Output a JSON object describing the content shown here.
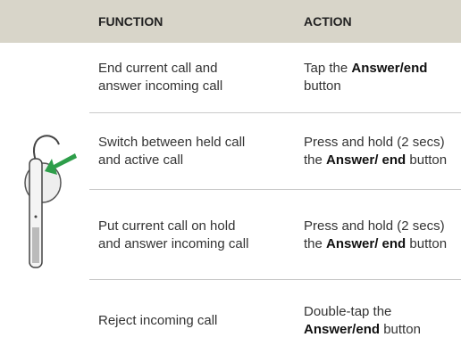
{
  "table": {
    "header": [
      "FUNCTION",
      "ACTION"
    ],
    "rows": [
      {
        "function": "End current call and answer incoming call",
        "action": {
          "before": "Tap the",
          "bold": "Answer/end",
          "after": "button"
        }
      },
      {
        "function": "Switch between held call and active call",
        "action": {
          "before": "Press and hold (2 secs) the",
          "bold": "Answer/ end",
          "after": "button"
        }
      },
      {
        "function": "Put current call on hold and answer incoming call",
        "action": {
          "before": "Press and hold (2 secs) the",
          "bold": "Answer/ end",
          "after": "button"
        }
      },
      {
        "function": "Reject incoming call",
        "action": {
          "before": "Double-tap the",
          "bold": "Answer/end",
          "after": "button"
        }
      }
    ]
  }
}
